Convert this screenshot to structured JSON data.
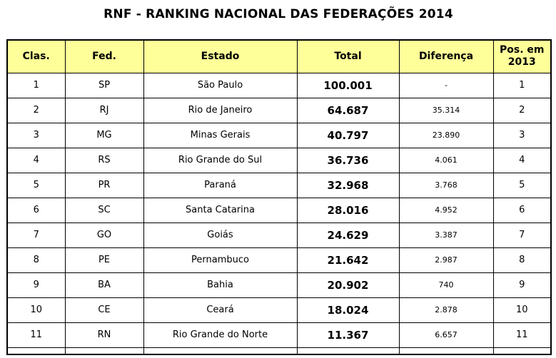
{
  "title": "RNF - RANKING NACIONAL DAS FEDERAÇÕES 2014",
  "colors": {
    "header_bg": "#FFFF99",
    "border": "#000000"
  },
  "table": {
    "headers": [
      "Clas.",
      "Fed.",
      "Estado",
      "Total",
      "Diferença",
      "Pos. em 2013"
    ],
    "rows": [
      {
        "clas": "1",
        "fed": "SP",
        "estado": "São Paulo",
        "total": "100.001",
        "diferenca": "-",
        "pos_2013": "1"
      },
      {
        "clas": "2",
        "fed": "RJ",
        "estado": "Rio de Janeiro",
        "total": "64.687",
        "diferenca": "35.314",
        "pos_2013": "2"
      },
      {
        "clas": "3",
        "fed": "MG",
        "estado": "Minas Gerais",
        "total": "40.797",
        "diferenca": "23.890",
        "pos_2013": "3"
      },
      {
        "clas": "4",
        "fed": "RS",
        "estado": "Rio Grande do Sul",
        "total": "36.736",
        "diferenca": "4.061",
        "pos_2013": "4"
      },
      {
        "clas": "5",
        "fed": "PR",
        "estado": "Paraná",
        "total": "32.968",
        "diferenca": "3.768",
        "pos_2013": "5"
      },
      {
        "clas": "6",
        "fed": "SC",
        "estado": "Santa Catarina",
        "total": "28.016",
        "diferenca": "4.952",
        "pos_2013": "6"
      },
      {
        "clas": "7",
        "fed": "GO",
        "estado": "Goiás",
        "total": "24.629",
        "diferenca": "3.387",
        "pos_2013": "7"
      },
      {
        "clas": "8",
        "fed": "PE",
        "estado": "Pernambuco",
        "total": "21.642",
        "diferenca": "2.987",
        "pos_2013": "8"
      },
      {
        "clas": "9",
        "fed": "BA",
        "estado": "Bahia",
        "total": "20.902",
        "diferenca": "740",
        "pos_2013": "9"
      },
      {
        "clas": "10",
        "fed": "CE",
        "estado": "Ceará",
        "total": "18.024",
        "diferenca": "2.878",
        "pos_2013": "10"
      },
      {
        "clas": "11",
        "fed": "RN",
        "estado": "Rio Grande do Norte",
        "total": "11.367",
        "diferenca": "6.657",
        "pos_2013": "11"
      }
    ]
  }
}
